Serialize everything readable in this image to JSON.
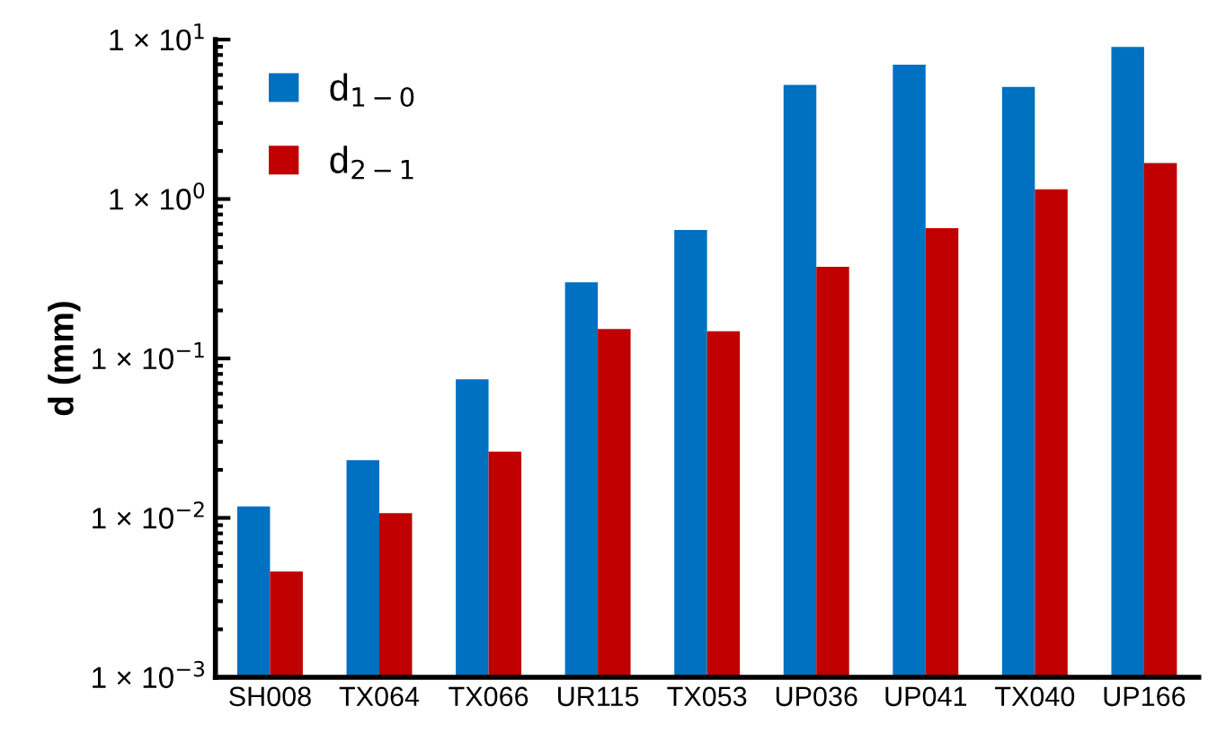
{
  "chart_data": {
    "type": "bar",
    "ylabel": "d (mm)",
    "categories": [
      "SH008",
      "TX064",
      "TX066",
      "UR115",
      "TX053",
      "UP036",
      "UP041",
      "TX040",
      "UP166"
    ],
    "series": [
      {
        "name": "d$_{1−0}$",
        "color": "#0070c0",
        "values": [
          0.0118,
          0.023,
          0.074,
          0.3,
          0.64,
          5.2,
          6.95,
          5.05,
          9.0
        ]
      },
      {
        "name": "d$_{2−1}$",
        "color": "#c00000",
        "values": [
          0.0046,
          0.0107,
          0.026,
          0.153,
          0.148,
          0.376,
          0.656,
          1.15,
          1.68
        ]
      }
    ],
    "log": "y",
    "ylim": [
      0.001,
      10
    ],
    "yticks": [
      {
        "value": 0.001,
        "label": "1 × 10$^{−3}$"
      },
      {
        "value": 0.01,
        "label": "1 × 10$^{−2}$"
      },
      {
        "value": 0.1,
        "label": "1 × 10$^{−1}$"
      },
      {
        "value": 1,
        "label": "1 × 10$^{0}$"
      },
      {
        "value": 10,
        "label": "1 × 10$^{1}$"
      }
    ],
    "legend": "top left",
    "grid": false
  }
}
